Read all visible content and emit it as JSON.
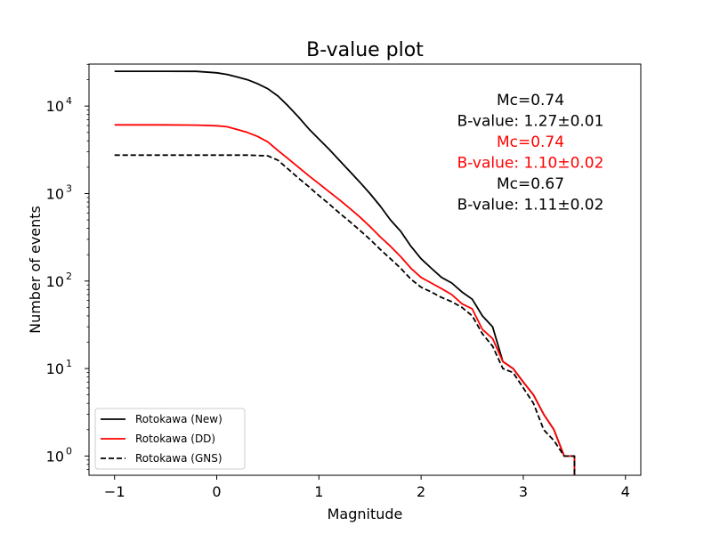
{
  "chart_data": {
    "type": "line",
    "title": "B-value plot",
    "xlabel": "Magnitude",
    "ylabel": "Number of events",
    "xlim": [
      -1.25,
      4.15
    ],
    "ylim_log10": [
      -0.22,
      4.48
    ],
    "y_scale": "log",
    "x_ticks": [
      {
        "value": -1,
        "label": "−1"
      },
      {
        "value": 0,
        "label": "0"
      },
      {
        "value": 1,
        "label": "1"
      },
      {
        "value": 2,
        "label": "2"
      },
      {
        "value": 3,
        "label": "3"
      },
      {
        "value": 4,
        "label": "4"
      }
    ],
    "y_ticks": [
      {
        "value": 1,
        "base": "10",
        "exp": "0"
      },
      {
        "value": 10,
        "base": "10",
        "exp": "1"
      },
      {
        "value": 100,
        "base": "10",
        "exp": "2"
      },
      {
        "value": 1000,
        "base": "10",
        "exp": "3"
      },
      {
        "value": 10000,
        "base": "10",
        "exp": "4"
      }
    ],
    "grid": false,
    "legend_position": "lower-left",
    "series": [
      {
        "name": "Rotokawa (New)",
        "color": "#000000",
        "style": "solid",
        "points": [
          [
            -1,
            25000
          ],
          [
            -0.5,
            25000
          ],
          [
            -0.2,
            24900
          ],
          [
            0,
            24000
          ],
          [
            0.1,
            23000
          ],
          [
            0.2,
            21500
          ],
          [
            0.3,
            20000
          ],
          [
            0.4,
            18000
          ],
          [
            0.5,
            15800
          ],
          [
            0.6,
            13000
          ],
          [
            0.7,
            10000
          ],
          [
            0.8,
            7500
          ],
          [
            0.9,
            5500
          ],
          [
            1.0,
            4200
          ],
          [
            1.1,
            3200
          ],
          [
            1.2,
            2400
          ],
          [
            1.3,
            1800
          ],
          [
            1.4,
            1350
          ],
          [
            1.5,
            1000
          ],
          [
            1.6,
            720
          ],
          [
            1.7,
            500
          ],
          [
            1.8,
            370
          ],
          [
            1.9,
            250
          ],
          [
            2.0,
            180
          ],
          [
            2.1,
            140
          ],
          [
            2.2,
            110
          ],
          [
            2.3,
            95
          ],
          [
            2.4,
            75
          ],
          [
            2.5,
            62
          ],
          [
            2.6,
            40
          ],
          [
            2.7,
            30
          ],
          [
            2.8,
            12
          ],
          [
            2.9,
            10
          ],
          [
            3.0,
            7
          ],
          [
            3.1,
            5
          ],
          [
            3.2,
            3
          ],
          [
            3.3,
            2
          ],
          [
            3.4,
            1
          ],
          [
            3.5,
            1
          ],
          [
            3.5,
            0.6
          ]
        ]
      },
      {
        "name": "Rotokawa (DD)",
        "color": "#ff0000",
        "style": "solid",
        "points": [
          [
            -1,
            6100
          ],
          [
            -0.5,
            6100
          ],
          [
            -0.2,
            6050
          ],
          [
            0,
            5950
          ],
          [
            0.1,
            5800
          ],
          [
            0.2,
            5400
          ],
          [
            0.3,
            5000
          ],
          [
            0.4,
            4500
          ],
          [
            0.5,
            3900
          ],
          [
            0.6,
            3100
          ],
          [
            0.7,
            2500
          ],
          [
            0.8,
            2000
          ],
          [
            0.9,
            1600
          ],
          [
            1.0,
            1300
          ],
          [
            1.1,
            1050
          ],
          [
            1.2,
            850
          ],
          [
            1.3,
            680
          ],
          [
            1.4,
            540
          ],
          [
            1.5,
            420
          ],
          [
            1.6,
            320
          ],
          [
            1.7,
            250
          ],
          [
            1.8,
            190
          ],
          [
            1.9,
            140
          ],
          [
            2.0,
            110
          ],
          [
            2.1,
            95
          ],
          [
            2.2,
            82
          ],
          [
            2.3,
            70
          ],
          [
            2.4,
            55
          ],
          [
            2.5,
            48
          ],
          [
            2.6,
            28
          ],
          [
            2.7,
            22
          ],
          [
            2.8,
            12
          ],
          [
            2.9,
            10
          ],
          [
            3.0,
            7
          ],
          [
            3.1,
            5
          ],
          [
            3.2,
            3
          ],
          [
            3.3,
            2
          ],
          [
            3.4,
            1
          ],
          [
            3.5,
            1
          ],
          [
            3.5,
            0.6
          ]
        ]
      },
      {
        "name": "Rotokawa (GNS)",
        "color": "#000000",
        "style": "dashed",
        "points": [
          [
            -1,
            2750
          ],
          [
            -0.5,
            2750
          ],
          [
            0,
            2750
          ],
          [
            0.3,
            2750
          ],
          [
            0.5,
            2700
          ],
          [
            0.6,
            2400
          ],
          [
            0.7,
            1900
          ],
          [
            0.8,
            1500
          ],
          [
            0.9,
            1200
          ],
          [
            1.0,
            950
          ],
          [
            1.1,
            760
          ],
          [
            1.2,
            600
          ],
          [
            1.3,
            480
          ],
          [
            1.4,
            380
          ],
          [
            1.5,
            300
          ],
          [
            1.6,
            230
          ],
          [
            1.7,
            180
          ],
          [
            1.8,
            140
          ],
          [
            1.9,
            105
          ],
          [
            2.0,
            85
          ],
          [
            2.1,
            75
          ],
          [
            2.2,
            65
          ],
          [
            2.3,
            58
          ],
          [
            2.4,
            50
          ],
          [
            2.5,
            40
          ],
          [
            2.6,
            25
          ],
          [
            2.7,
            18
          ],
          [
            2.8,
            10
          ],
          [
            2.9,
            9
          ],
          [
            3.0,
            6
          ],
          [
            3.1,
            4
          ],
          [
            3.2,
            2
          ],
          [
            3.3,
            1.5
          ],
          [
            3.4,
            1
          ],
          [
            3.5,
            1
          ],
          [
            3.5,
            0.6
          ]
        ]
      }
    ],
    "annotations": [
      {
        "text": "Mc=0.74",
        "color": "#000000"
      },
      {
        "text": "B-value: 1.27±0.01",
        "color": "#000000"
      },
      {
        "text": "Mc=0.74",
        "color": "#ff0000"
      },
      {
        "text": "B-value: 1.10±0.02",
        "color": "#ff0000"
      },
      {
        "text": "Mc=0.67",
        "color": "#000000"
      },
      {
        "text": "B-value: 1.11±0.02",
        "color": "#000000"
      }
    ]
  }
}
